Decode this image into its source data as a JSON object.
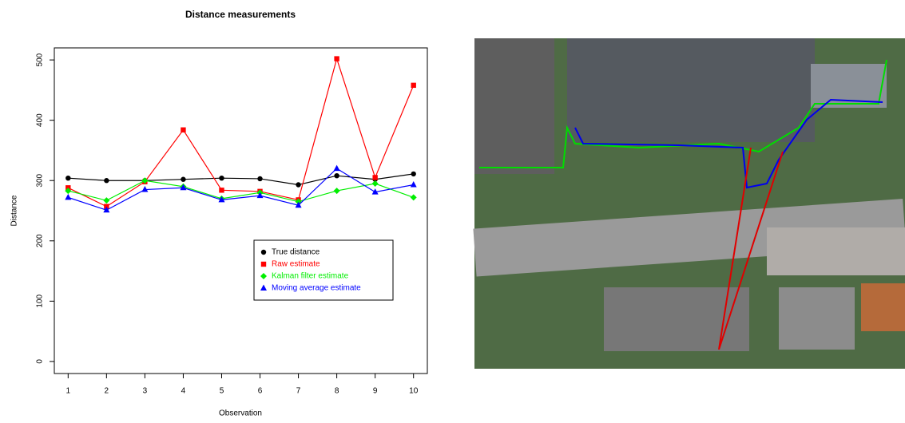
{
  "chart_data": {
    "type": "line",
    "title": "Distance measurements",
    "x_label": "Observation",
    "y_label": "Distance",
    "x": [
      1,
      2,
      3,
      4,
      5,
      6,
      7,
      8,
      9,
      10
    ],
    "xlim": [
      0.64,
      10.36
    ],
    "xticks": [
      1,
      2,
      3,
      4,
      5,
      6,
      7,
      8,
      9,
      10
    ],
    "ylim": [
      -20,
      520
    ],
    "yticks": [
      0,
      100,
      200,
      300,
      400,
      500
    ],
    "legend": "bottom-right",
    "series": [
      {
        "name": "True distance",
        "color": "#000000",
        "marker": "circle",
        "values": [
          304,
          300,
          300,
          302,
          304,
          303,
          293,
          308,
          302,
          311
        ]
      },
      {
        "name": "Raw estimate",
        "color": "#ff0000",
        "marker": "square",
        "values": [
          288,
          257,
          298,
          384,
          284,
          282,
          268,
          502,
          305,
          458
        ]
      },
      {
        "name": "Kalman filter estimate",
        "color": "#00ee00",
        "marker": "diamond",
        "values": [
          283,
          267,
          300,
          290,
          270,
          280,
          265,
          283,
          295,
          272
        ]
      },
      {
        "name": "Moving average estimate",
        "color": "#0000ff",
        "marker": "triangle",
        "values": [
          272,
          251,
          285,
          288,
          268,
          275,
          259,
          320,
          281,
          293
        ]
      }
    ]
  }
}
